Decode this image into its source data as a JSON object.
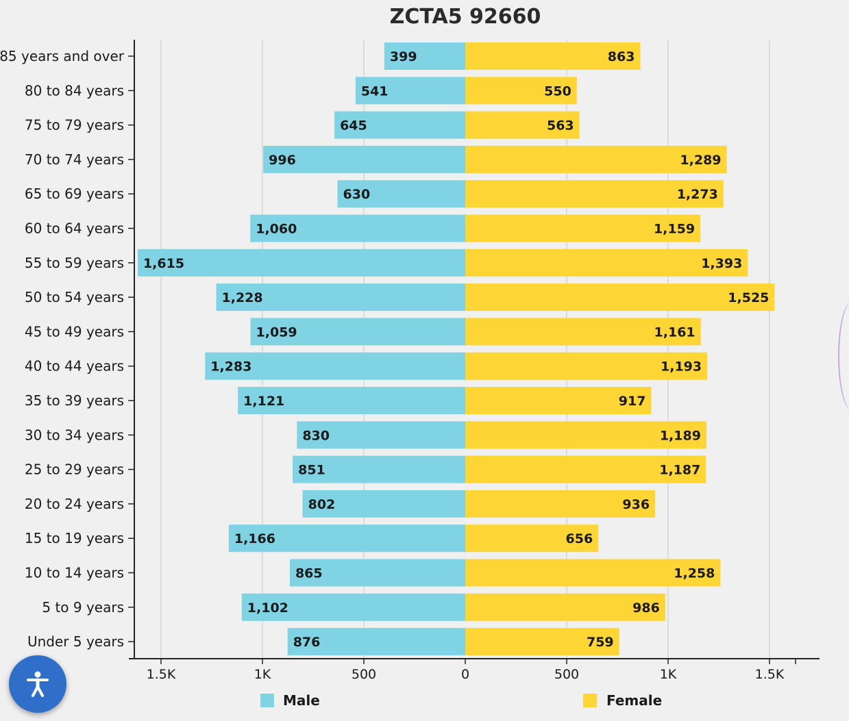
{
  "chart_data": {
    "type": "bar",
    "title": "ZCTA5 92660",
    "categories": [
      "85 years and over",
      "80 to 84 years",
      "75 to 79 years",
      "70 to 74 years",
      "65 to 69 years",
      "60 to 64 years",
      "55 to 59 years",
      "50 to 54 years",
      "45 to 49 years",
      "40 to 44 years",
      "35 to 39 years",
      "30 to 34 years",
      "25 to 29 years",
      "20 to 24 years",
      "15 to 19 years",
      "10 to 14 years",
      "5 to 9 years",
      "Under 5 years"
    ],
    "series": [
      {
        "name": "Male",
        "color": "#7fd3e3",
        "values": [
          399,
          541,
          645,
          996,
          630,
          1060,
          1615,
          1228,
          1059,
          1283,
          1121,
          830,
          851,
          802,
          1166,
          865,
          1102,
          876
        ],
        "labels": [
          "399",
          "541",
          "645",
          "996",
          "630",
          "1,060",
          "1,615",
          "1,228",
          "1,059",
          "1,283",
          "1,121",
          "830",
          "851",
          "802",
          "1,166",
          "865",
          "1,102",
          "876"
        ]
      },
      {
        "name": "Female",
        "color": "#fdd535",
        "values": [
          863,
          550,
          563,
          1289,
          1273,
          1159,
          1393,
          1525,
          1161,
          1193,
          917,
          1189,
          1187,
          936,
          656,
          1258,
          986,
          759
        ],
        "labels": [
          "863",
          "550",
          "563",
          "1,289",
          "1,273",
          "1,159",
          "1,393",
          "1,525",
          "1,161",
          "1,193",
          "917",
          "1,189",
          "1,187",
          "936",
          "656",
          "1,258",
          "986",
          "759"
        ]
      }
    ],
    "xlim": [
      -1600,
      1600
    ],
    "ticks": [
      -1500,
      -1000,
      -500,
      0,
      500,
      1000,
      1500
    ],
    "tick_labels": [
      "1.5K",
      "1K",
      "500",
      "0",
      "500",
      "1K",
      "1.5K"
    ],
    "grid": true,
    "legend_position": "bottom"
  },
  "accessibility": {
    "icon": "accessibility-icon",
    "color": "#2f6fc9"
  }
}
